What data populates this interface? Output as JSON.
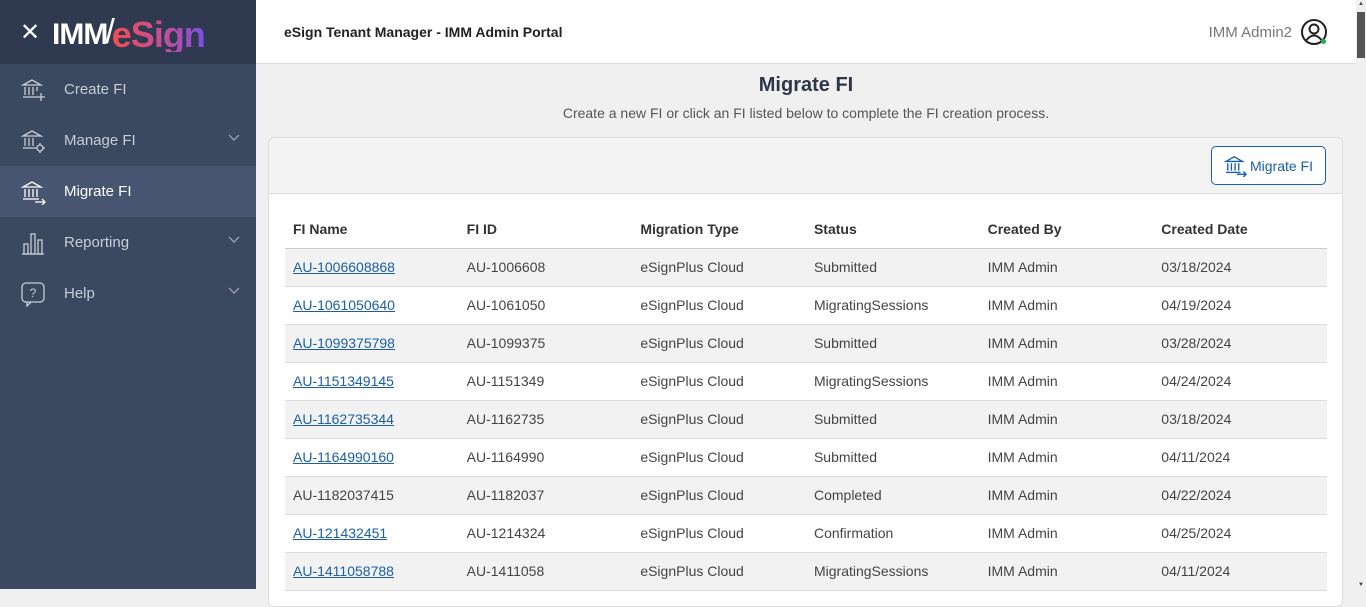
{
  "brand": {
    "logo_left": "IMM",
    "logo_right": "eSign"
  },
  "sidebar": {
    "items": [
      {
        "label": "Create FI",
        "icon": "bank-plus-icon",
        "expandable": false,
        "active": false
      },
      {
        "label": "Manage FI",
        "icon": "bank-gear-icon",
        "expandable": true,
        "active": false
      },
      {
        "label": "Migrate FI",
        "icon": "bank-arrow-icon",
        "expandable": false,
        "active": true
      },
      {
        "label": "Reporting",
        "icon": "bar-chart-icon",
        "expandable": true,
        "active": false
      },
      {
        "label": "Help",
        "icon": "help-bubble-icon",
        "expandable": true,
        "active": false
      }
    ]
  },
  "header": {
    "title": "eSign Tenant Manager - IMM Admin Portal",
    "user": "IMM Admin2",
    "status_color": "#22b14c"
  },
  "main": {
    "title": "Migrate FI",
    "subtitle": "Create a new FI or click an FI listed below to complete the FI creation process.",
    "button_label": "Migrate FI"
  },
  "table": {
    "columns": [
      "FI Name",
      "FI ID",
      "Migration Type",
      "Status",
      "Created By",
      "Created Date"
    ],
    "rows": [
      {
        "name": "AU-1006608868",
        "link": true,
        "id": "AU-1006608",
        "type": "eSignPlus Cloud",
        "status": "Submitted",
        "by": "IMM Admin",
        "date": "03/18/2024"
      },
      {
        "name": "AU-1061050640",
        "link": true,
        "id": "AU-1061050",
        "type": "eSignPlus Cloud",
        "status": "MigratingSessions",
        "by": "IMM Admin",
        "date": "04/19/2024"
      },
      {
        "name": "AU-1099375798",
        "link": true,
        "id": "AU-1099375",
        "type": "eSignPlus Cloud",
        "status": "Submitted",
        "by": "IMM Admin",
        "date": "03/28/2024"
      },
      {
        "name": "AU-1151349145",
        "link": true,
        "id": "AU-1151349",
        "type": "eSignPlus Cloud",
        "status": "MigratingSessions",
        "by": "IMM Admin",
        "date": "04/24/2024"
      },
      {
        "name": "AU-1162735344",
        "link": true,
        "id": "AU-1162735",
        "type": "eSignPlus Cloud",
        "status": "Submitted",
        "by": "IMM Admin",
        "date": "03/18/2024"
      },
      {
        "name": "AU-1164990160",
        "link": true,
        "id": "AU-1164990",
        "type": "eSignPlus Cloud",
        "status": "Submitted",
        "by": "IMM Admin",
        "date": "04/11/2024"
      },
      {
        "name": "AU-1182037415",
        "link": false,
        "id": "AU-1182037",
        "type": "eSignPlus Cloud",
        "status": "Completed",
        "by": "IMM Admin",
        "date": "04/22/2024"
      },
      {
        "name": "AU-121432451",
        "link": true,
        "id": "AU-1214324",
        "type": "eSignPlus Cloud",
        "status": "Confirmation",
        "by": "IMM Admin",
        "date": "04/25/2024"
      },
      {
        "name": "AU-1411058788",
        "link": true,
        "id": "AU-1411058",
        "type": "eSignPlus Cloud",
        "status": "MigratingSessions",
        "by": "IMM Admin",
        "date": "04/11/2024"
      }
    ]
  }
}
